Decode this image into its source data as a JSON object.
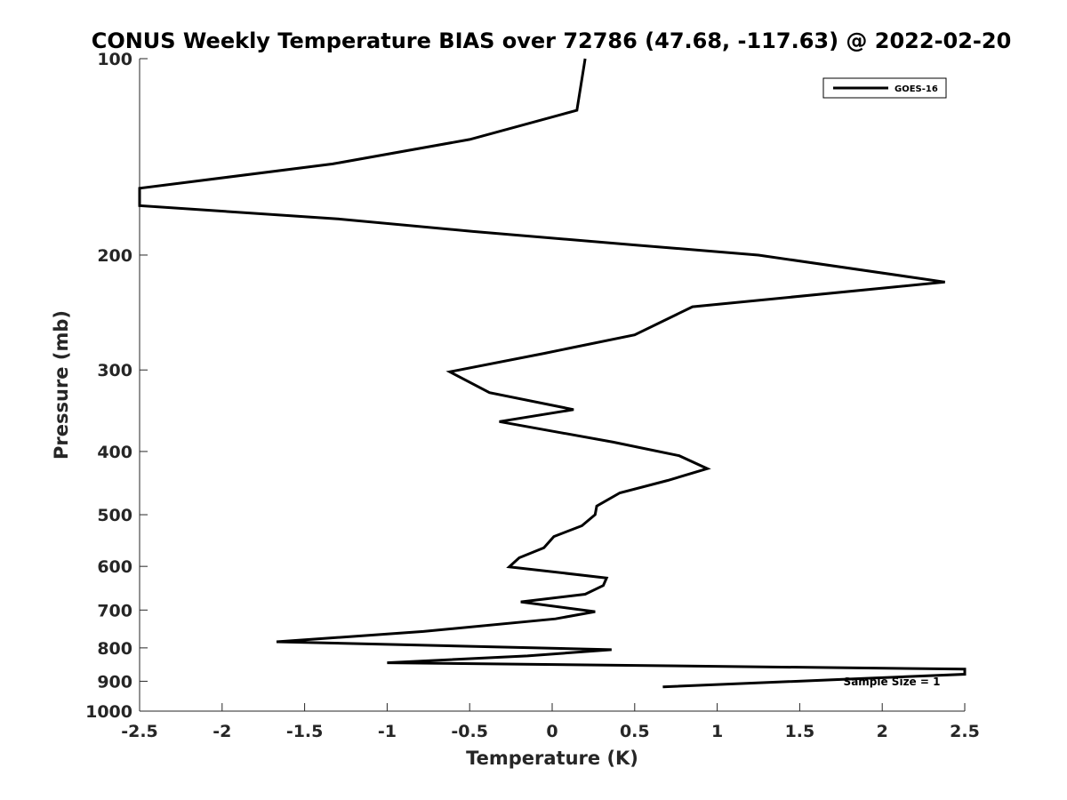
{
  "chart_data": {
    "type": "line",
    "title": "CONUS Weekly Temperature BIAS over 72786 (47.68, -117.63) @ 2022-02-20",
    "xlabel": "Temperature (K)",
    "ylabel": "Pressure (mb)",
    "xlim": [
      -2.5,
      2.5
    ],
    "ylim": [
      100,
      1000
    ],
    "y_scale": "log",
    "y_reversed": true,
    "x_ticks": [
      "-2.5",
      "-2",
      "-1.5",
      "-1",
      "-0.5",
      "0",
      "0.5",
      "1",
      "1.5",
      "2",
      "2.5"
    ],
    "y_ticks": [
      "100",
      "200",
      "300",
      "400",
      "500",
      "600",
      "700",
      "800",
      "900",
      "1000"
    ],
    "grid": false,
    "legend_position": "top-right",
    "series": [
      {
        "name": "GOES-16",
        "color": "#000000",
        "points": [
          [
            0.2,
            100
          ],
          [
            0.15,
            120
          ],
          [
            -0.5,
            133
          ],
          [
            -1.33,
            145
          ],
          [
            -2.5,
            158
          ],
          [
            -2.5,
            168
          ],
          [
            -1.3,
            176
          ],
          [
            -0.48,
            184
          ],
          [
            0.5,
            193
          ],
          [
            1.25,
            200
          ],
          [
            2.38,
            220
          ],
          [
            0.85,
            240
          ],
          [
            0.5,
            265
          ],
          [
            -0.05,
            283
          ],
          [
            -0.62,
            302
          ],
          [
            -0.38,
            325
          ],
          [
            0.13,
            345
          ],
          [
            -0.32,
            360
          ],
          [
            0.37,
            387
          ],
          [
            0.77,
            406
          ],
          [
            0.94,
            425
          ],
          [
            0.7,
            443
          ],
          [
            0.41,
            463
          ],
          [
            0.27,
            485
          ],
          [
            0.26,
            500
          ],
          [
            0.18,
            520
          ],
          [
            0.01,
            540
          ],
          [
            -0.05,
            562
          ],
          [
            -0.2,
            582
          ],
          [
            -0.26,
            601
          ],
          [
            0.33,
            625
          ],
          [
            0.31,
            642
          ],
          [
            0.2,
            662
          ],
          [
            -0.19,
            680
          ],
          [
            0.26,
            704
          ],
          [
            0.02,
            722
          ],
          [
            -0.78,
            755
          ],
          [
            -1.67,
            783
          ],
          [
            0.36,
            805
          ],
          [
            -0.15,
            823
          ],
          [
            -1.0,
            843
          ],
          [
            2.5,
            862
          ],
          [
            2.5,
            878
          ],
          [
            0.67,
            918
          ]
        ]
      }
    ],
    "annotation": "Sample Size = 1"
  }
}
